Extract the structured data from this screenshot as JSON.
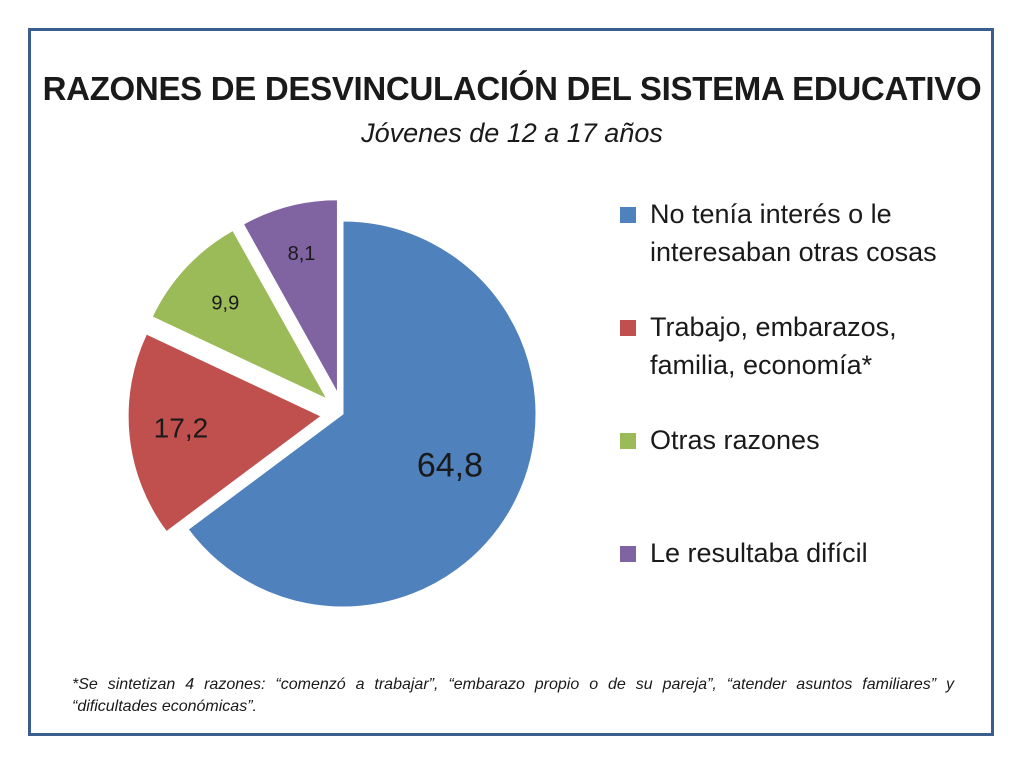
{
  "chart_data": {
    "type": "pie",
    "title": "RAZONES DE DESVINCULACIÓN DEL SISTEMA EDUCATIVO",
    "subtitle": "Jóvenes de 12 a 17 años",
    "categories": [
      "No tenía interés o le interesaban otras cosas",
      "Trabajo, embarazos, familia, economía*",
      "Otras razones",
      "Le resultaba difícil"
    ],
    "values": [
      64.8,
      17.2,
      9.9,
      8.1
    ],
    "data_labels": [
      "64,8",
      "17,2",
      "9,9",
      "8,1"
    ],
    "colors": [
      "#4f81bd",
      "#c0504d",
      "#9bbb59",
      "#8064a2"
    ],
    "exploded": [
      false,
      true,
      true,
      true
    ],
    "legend_position": "right"
  },
  "footnote": "*Se sintetizan  4 razones: “comenzó a trabajar”, “embarazo propio o de su pareja”, “atender asuntos familiares” y “dificultades económicas”."
}
